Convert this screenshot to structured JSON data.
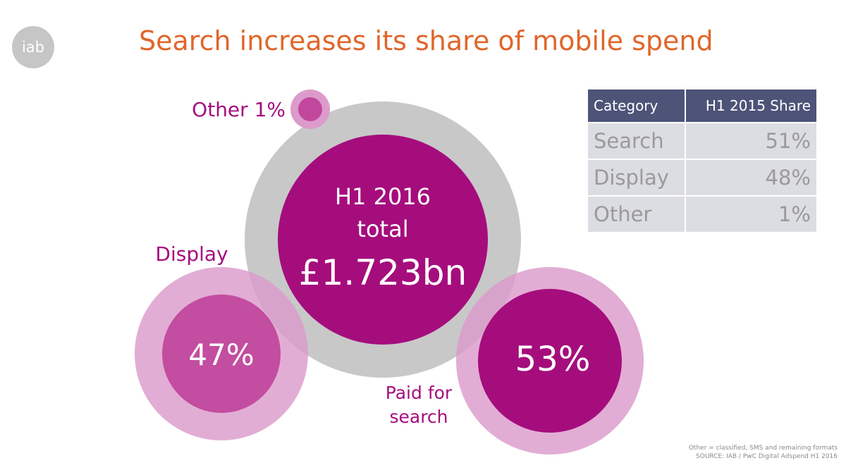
{
  "logo": {
    "text": "iab"
  },
  "title": "Search increases its share of mobile spend",
  "colors": {
    "title": "#e0662a",
    "magenta": "#a50d7d",
    "pink_outer": "#dc9bcb",
    "pink_inner": "#c1489d",
    "grey_ring": "#c8c8c8",
    "table_header": "#4d5478",
    "table_row": "#dcdde2"
  },
  "chart_data": {
    "type": "bubble",
    "center": {
      "line1": "H1 2016",
      "line2": "total",
      "value": "£1.723bn"
    },
    "series": [
      {
        "name": "Display",
        "label": "Display",
        "value": 47,
        "value_text": "47%"
      },
      {
        "name": "Paid for search",
        "label_lines": [
          "Paid for",
          "search"
        ],
        "value": 53,
        "value_text": "53%"
      },
      {
        "name": "Other",
        "label": "Other 1%",
        "value": 1,
        "value_text": ""
      }
    ]
  },
  "table": {
    "headers": [
      "Category",
      "H1 2015 Share"
    ],
    "rows": [
      [
        "Search",
        "51%"
      ],
      [
        "Display",
        "48%"
      ],
      [
        "Other",
        "1%"
      ]
    ]
  },
  "footnote": {
    "line1": "Other = classified, SMS and remaining formats",
    "line2": "SOURCE: IAB / PwC Digital Adspend H1 2016"
  }
}
